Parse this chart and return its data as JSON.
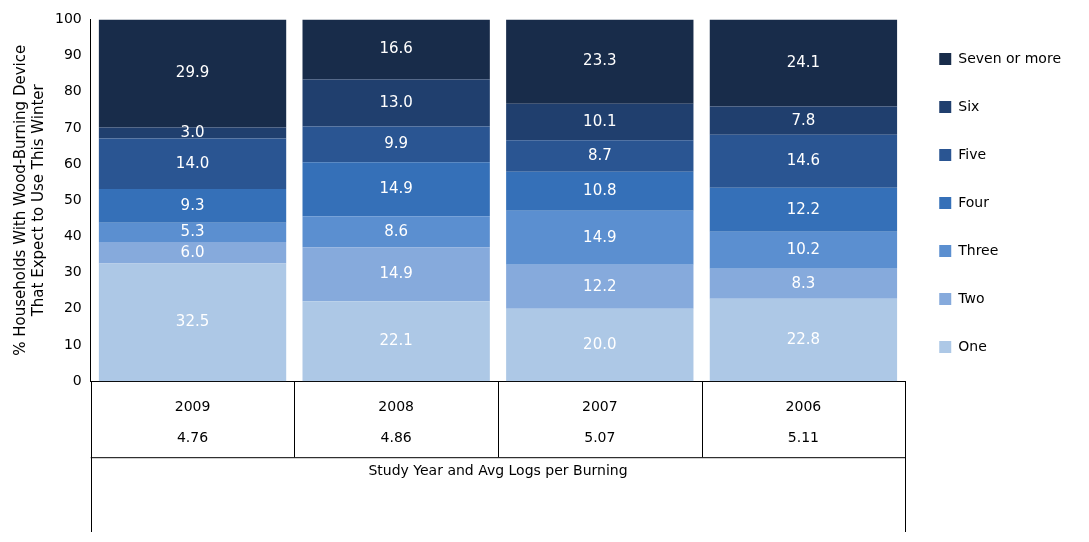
{
  "chart_data": {
    "type": "bar",
    "stacked": true,
    "xlabel": "Study Year and Avg Logs per Burning",
    "ylabel": "% Households With Wood-Burning Device That Expect to Use This Winter",
    "categories": [
      "2009",
      "2008",
      "2007",
      "2006"
    ],
    "annotations": [
      "4.76",
      "4.86",
      "5.07",
      "5.11"
    ],
    "ylim": [
      0,
      100
    ],
    "yticks": [
      0,
      10,
      20,
      30,
      40,
      50,
      60,
      70,
      80,
      90,
      100
    ],
    "grid": false,
    "legend": "right",
    "series": [
      {
        "name": "One",
        "color": "#adc8e6",
        "values": [
          32.5,
          22.1,
          20.0,
          22.8
        ],
        "value_labels": [
          "32.5",
          "22.1",
          "20.0",
          "22.8"
        ]
      },
      {
        "name": "Two",
        "color": "#86aadc",
        "values": [
          6.0,
          14.9,
          12.2,
          8.3
        ],
        "value_labels": [
          "6.0",
          "14.9",
          "12.2",
          "8.3"
        ]
      },
      {
        "name": "Three",
        "color": "#5b8fd0",
        "values": [
          5.3,
          8.6,
          14.9,
          10.2
        ],
        "value_labels": [
          "5.3",
          "8.6",
          "14.9",
          "10.2"
        ]
      },
      {
        "name": "Four",
        "color": "#3570b8",
        "values": [
          9.3,
          14.9,
          10.8,
          12.2
        ],
        "value_labels": [
          "9.3",
          "14.9",
          "10.8",
          "12.2"
        ]
      },
      {
        "name": "Five",
        "color": "#2a5592",
        "values": [
          14.0,
          9.9,
          8.7,
          14.6
        ],
        "value_labels": [
          "14.0",
          "9.9",
          "8.7",
          "14.6"
        ]
      },
      {
        "name": "Six",
        "color": "#203f6e",
        "values": [
          3.0,
          13.0,
          10.1,
          7.8
        ],
        "value_labels": [
          "3.0",
          "13.0",
          "10.1",
          "7.8"
        ]
      },
      {
        "name": "Seven or more",
        "color": "#182c4a",
        "values": [
          29.9,
          16.6,
          23.3,
          24.1
        ],
        "value_labels": [
          "29.9",
          "16.6",
          "23.3",
          "24.1"
        ]
      }
    ]
  }
}
